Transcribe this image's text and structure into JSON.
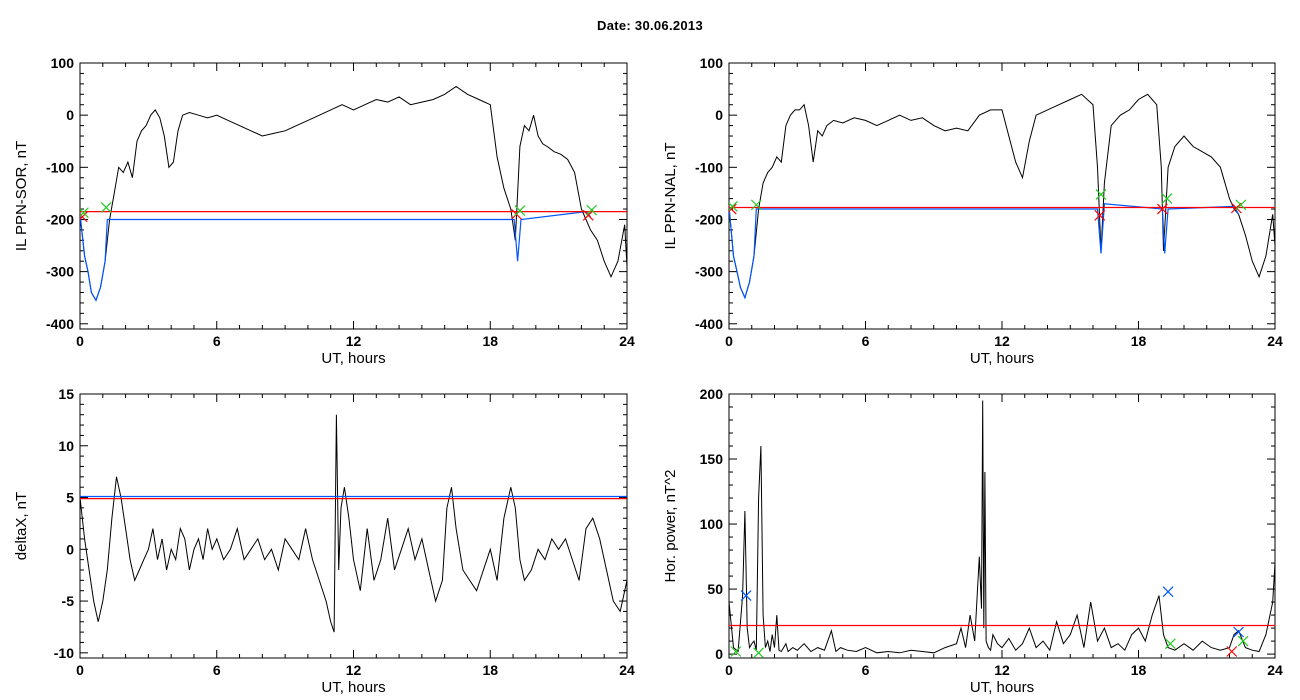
{
  "title": "Date:  30.06.2013",
  "colors": {
    "black": "#000000",
    "red": "#ff0000",
    "blue": "#0055ff",
    "green": "#22cc22"
  },
  "chart_data": [
    {
      "id": "il-ppn-sor",
      "type": "line",
      "xlabel": "UT, hours",
      "ylabel": "IL PPN-SOR, nT",
      "xlim": [
        0,
        24
      ],
      "ylim": [
        -410,
        100
      ],
      "xticks": [
        0,
        6,
        12,
        18,
        24
      ],
      "yticks": [
        100,
        0,
        -100,
        -200,
        -300,
        -400
      ],
      "series": [
        {
          "color": "black",
          "x": [
            0,
            0.2,
            0.35,
            0.5,
            0.7,
            0.9,
            1.1,
            1.3,
            1.5,
            1.7,
            1.9,
            2.1,
            2.3,
            2.5,
            2.7,
            2.9,
            3.1,
            3.3,
            3.5,
            3.7,
            3.9,
            4.1,
            4.3,
            4.5,
            4.8,
            5.2,
            5.6,
            6,
            6.5,
            7,
            7.5,
            8,
            8.5,
            9,
            9.5,
            10,
            10.5,
            11,
            11.5,
            12,
            12.5,
            13,
            13.5,
            14,
            14.5,
            15,
            15.5,
            16,
            16.5,
            17,
            17.5,
            18,
            18.3,
            18.6,
            18.9,
            19.1,
            19.3,
            19.5,
            19.7,
            19.9,
            20.1,
            20.3,
            20.5,
            20.8,
            21.1,
            21.4,
            21.7,
            22,
            22.2,
            22.4,
            22.7,
            23,
            23.3,
            23.6,
            23.9,
            24
          ],
          "y": [
            -190,
            -270,
            -300,
            -340,
            -355,
            -330,
            -280,
            -200,
            -150,
            -100,
            -110,
            -90,
            -120,
            -50,
            -30,
            -20,
            0,
            10,
            -5,
            -40,
            -100,
            -90,
            -30,
            0,
            5,
            0,
            -5,
            0,
            -10,
            -20,
            -30,
            -40,
            -35,
            -30,
            -20,
            -10,
            0,
            10,
            20,
            10,
            20,
            30,
            25,
            35,
            20,
            25,
            30,
            40,
            55,
            40,
            30,
            20,
            -80,
            -140,
            -180,
            -240,
            -60,
            -20,
            -30,
            0,
            -40,
            -55,
            -60,
            -70,
            -75,
            -85,
            -110,
            -180,
            -200,
            -220,
            -240,
            -280,
            -310,
            -280,
            -210,
            -290
          ]
        },
        {
          "color": "blue",
          "x": [
            0,
            0.2,
            0.35,
            0.5,
            0.7,
            0.9,
            1.1,
            1.2,
            19.05,
            19.2,
            19.35,
            22.2,
            22.4
          ],
          "y": [
            -190,
            -270,
            -300,
            -340,
            -355,
            -330,
            -280,
            -200,
            -200,
            -280,
            -200,
            -185,
            -195
          ]
        },
        {
          "color": "red",
          "x": [
            0,
            24
          ],
          "y": [
            -185,
            -185
          ]
        }
      ],
      "markers": [
        {
          "color": "green",
          "x": 1.15,
          "y": -177
        },
        {
          "color": "red",
          "x": 0.1,
          "y": -195
        },
        {
          "color": "green",
          "x": 0.15,
          "y": -187
        },
        {
          "color": "red",
          "x": 19.15,
          "y": -190
        },
        {
          "color": "green",
          "x": 19.3,
          "y": -183
        },
        {
          "color": "red",
          "x": 22.3,
          "y": -192
        },
        {
          "color": "green",
          "x": 22.45,
          "y": -182
        }
      ]
    },
    {
      "id": "il-ppn-nal",
      "type": "line",
      "xlabel": "UT, hours",
      "ylabel": "IL PPN-NAL, nT",
      "xlim": [
        0,
        24
      ],
      "ylim": [
        -410,
        100
      ],
      "xticks": [
        0,
        6,
        12,
        18,
        24
      ],
      "yticks": [
        100,
        0,
        -100,
        -200,
        -300,
        -400
      ],
      "series": [
        {
          "color": "black",
          "x": [
            0,
            0.2,
            0.35,
            0.5,
            0.7,
            0.9,
            1.1,
            1.3,
            1.5,
            1.7,
            1.9,
            2.1,
            2.3,
            2.5,
            2.7,
            2.9,
            3.1,
            3.3,
            3.5,
            3.7,
            3.9,
            4.1,
            4.3,
            4.6,
            5,
            5.5,
            6,
            6.5,
            7,
            7.5,
            8,
            8.5,
            9,
            9.5,
            10,
            10.5,
            11,
            11.5,
            12,
            12.3,
            12.6,
            12.9,
            13.2,
            13.5,
            14,
            14.5,
            15,
            15.5,
            16,
            16.2,
            16.35,
            16.5,
            16.8,
            17.2,
            17.6,
            18,
            18.4,
            18.8,
            19,
            19.1,
            19.3,
            19.6,
            20,
            20.4,
            20.8,
            21.2,
            21.6,
            22,
            22.2,
            22.4,
            22.7,
            23,
            23.3,
            23.6,
            23.9,
            24
          ],
          "y": [
            -175,
            -270,
            -300,
            -330,
            -350,
            -320,
            -270,
            -180,
            -130,
            -110,
            -100,
            -80,
            -90,
            -20,
            0,
            10,
            10,
            20,
            -20,
            -90,
            -30,
            -40,
            -20,
            -10,
            -15,
            -5,
            -10,
            -20,
            -10,
            0,
            -10,
            -5,
            -20,
            -30,
            -25,
            -30,
            0,
            10,
            10,
            -40,
            -90,
            -120,
            -50,
            0,
            10,
            20,
            30,
            40,
            20,
            -100,
            -260,
            -130,
            -20,
            0,
            10,
            30,
            40,
            20,
            -100,
            -260,
            -100,
            -60,
            -40,
            -60,
            -70,
            -80,
            -100,
            -160,
            -180,
            -190,
            -230,
            -280,
            -310,
            -270,
            -190,
            -250
          ]
        },
        {
          "color": "blue",
          "x": [
            0,
            0.2,
            0.35,
            0.5,
            0.7,
            0.9,
            1.1,
            1.2,
            16.2,
            16.35,
            16.5,
            19.05,
            19.15,
            19.3,
            22.2,
            22.4
          ],
          "y": [
            -175,
            -270,
            -300,
            -330,
            -350,
            -320,
            -270,
            -180,
            -180,
            -265,
            -170,
            -180,
            -265,
            -180,
            -175,
            -190
          ]
        },
        {
          "color": "red",
          "x": [
            0,
            24
          ],
          "y": [
            -177,
            -177
          ]
        }
      ],
      "markers": [
        {
          "color": "green",
          "x": 1.2,
          "y": -172
        },
        {
          "color": "red",
          "x": 0.1,
          "y": -180
        },
        {
          "color": "green",
          "x": 0.15,
          "y": -175
        },
        {
          "color": "red",
          "x": 16.3,
          "y": -192
        },
        {
          "color": "green",
          "x": 16.35,
          "y": -152
        },
        {
          "color": "red",
          "x": 19.05,
          "y": -180
        },
        {
          "color": "green",
          "x": 19.25,
          "y": -160
        },
        {
          "color": "red",
          "x": 22.3,
          "y": -178
        },
        {
          "color": "green",
          "x": 22.5,
          "y": -172
        }
      ]
    },
    {
      "id": "deltax",
      "type": "line",
      "xlabel": "UT, hours",
      "ylabel": "deltaX, nT",
      "xlim": [
        0,
        24
      ],
      "ylim": [
        -10.5,
        15
      ],
      "xticks": [
        0,
        6,
        12,
        18,
        24
      ],
      "yticks": [
        15,
        10,
        5,
        0,
        -5,
        -10
      ],
      "series": [
        {
          "color": "black",
          "x": [
            0,
            0.2,
            0.4,
            0.6,
            0.8,
            1,
            1.2,
            1.4,
            1.6,
            1.8,
            2,
            2.2,
            2.4,
            2.6,
            2.8,
            3,
            3.2,
            3.4,
            3.6,
            3.8,
            4,
            4.2,
            4.4,
            4.6,
            4.8,
            5,
            5.2,
            5.4,
            5.6,
            5.8,
            6,
            6.3,
            6.6,
            6.9,
            7.2,
            7.5,
            7.8,
            8.1,
            8.4,
            8.7,
            9,
            9.3,
            9.6,
            9.9,
            10.2,
            10.5,
            10.8,
            11,
            11.15,
            11.25,
            11.35,
            11.45,
            11.6,
            11.8,
            12,
            12.3,
            12.6,
            12.9,
            13.2,
            13.5,
            13.8,
            14.1,
            14.4,
            14.7,
            15,
            15.3,
            15.6,
            15.9,
            16.1,
            16.3,
            16.5,
            16.8,
            17.1,
            17.4,
            17.7,
            18,
            18.3,
            18.6,
            18.9,
            19.1,
            19.3,
            19.5,
            19.8,
            20.1,
            20.4,
            20.7,
            21,
            21.3,
            21.6,
            21.9,
            22.2,
            22.5,
            22.8,
            23.1,
            23.4,
            23.7,
            24
          ],
          "y": [
            5,
            1,
            -2,
            -5,
            -7,
            -5,
            -2,
            3,
            7,
            5,
            2,
            -1,
            -3,
            -2,
            -1,
            0,
            2,
            -1,
            1,
            -2,
            0,
            -1,
            2,
            1,
            -2,
            0,
            1,
            -1,
            2,
            0,
            1,
            -1,
            0,
            2,
            -1,
            0,
            1,
            -1,
            0,
            -2,
            1,
            0,
            -1,
            2,
            -1,
            -3,
            -5,
            -7,
            -8,
            13,
            -2,
            4,
            6,
            3,
            -1,
            -4,
            2,
            -3,
            -1,
            3,
            -2,
            0,
            2,
            -1,
            1,
            -2,
            -5,
            -3,
            4,
            6,
            2,
            -2,
            -3,
            -4,
            -2,
            0,
            -3,
            3,
            6,
            4,
            -1,
            -3,
            -2,
            0,
            -1,
            1,
            0,
            1,
            -1,
            -3,
            2,
            3,
            1,
            -2,
            -5,
            -6,
            -3
          ]
        },
        {
          "color": "red",
          "x": [
            0,
            24
          ],
          "y": [
            4.9,
            4.9
          ]
        },
        {
          "color": "blue",
          "x": [
            0,
            24
          ],
          "y": [
            5.1,
            5.1
          ]
        }
      ],
      "markers": []
    },
    {
      "id": "hor-power",
      "type": "line",
      "xlabel": "UT, hours",
      "ylabel": "Hor. power, nT^2",
      "xlim": [
        0,
        24
      ],
      "ylim": [
        -3,
        200
      ],
      "xticks": [
        0,
        6,
        12,
        18,
        24
      ],
      "yticks": [
        200,
        150,
        100,
        50,
        0
      ],
      "series": [
        {
          "color": "black",
          "x": [
            0,
            0.2,
            0.4,
            0.6,
            0.7,
            0.8,
            0.9,
            1,
            1.1,
            1.2,
            1.3,
            1.4,
            1.5,
            1.6,
            1.7,
            1.8,
            1.9,
            2,
            2.1,
            2.2,
            2.3,
            2.4,
            2.5,
            2.6,
            2.8,
            3,
            3.3,
            3.6,
            3.9,
            4.2,
            4.5,
            4.7,
            4.9,
            5.2,
            5.6,
            6,
            6.5,
            7,
            7.5,
            8,
            8.5,
            9,
            9.5,
            10,
            10.2,
            10.4,
            10.6,
            10.8,
            11,
            11.1,
            11.15,
            11.2,
            11.25,
            11.3,
            11.4,
            11.5,
            11.6,
            11.8,
            12,
            12.3,
            12.6,
            12.9,
            13.2,
            13.5,
            13.8,
            14.1,
            14.4,
            14.7,
            15,
            15.3,
            15.6,
            15.9,
            16.2,
            16.5,
            16.8,
            17.1,
            17.4,
            17.7,
            18,
            18.3,
            18.6,
            18.9,
            19.1,
            19.3,
            19.6,
            20,
            20.4,
            20.8,
            21.2,
            21.6,
            22,
            22.2,
            22.4,
            22.7,
            23,
            23.3,
            23.6,
            23.9,
            24
          ],
          "y": [
            40,
            5,
            2,
            45,
            110,
            20,
            5,
            8,
            10,
            3,
            120,
            160,
            30,
            5,
            10,
            2,
            15,
            5,
            30,
            3,
            2,
            5,
            8,
            2,
            5,
            3,
            8,
            2,
            5,
            3,
            18,
            2,
            5,
            3,
            2,
            5,
            1,
            2,
            1,
            3,
            2,
            1,
            5,
            8,
            20,
            5,
            30,
            10,
            75,
            35,
            195,
            20,
            140,
            10,
            5,
            3,
            15,
            8,
            5,
            12,
            3,
            8,
            20,
            5,
            10,
            3,
            25,
            8,
            15,
            30,
            5,
            40,
            10,
            20,
            5,
            8,
            3,
            15,
            20,
            10,
            30,
            45,
            15,
            5,
            3,
            8,
            3,
            10,
            5,
            3,
            5,
            15,
            18,
            5,
            3,
            2,
            15,
            40,
            70
          ]
        },
        {
          "color": "red",
          "x": [
            0,
            24
          ],
          "y": [
            22,
            22
          ]
        }
      ],
      "markers": [
        {
          "color": "blue",
          "x": 0.75,
          "y": 45
        },
        {
          "color": "green",
          "x": 0.3,
          "y": 2
        },
        {
          "color": "green",
          "x": 1.3,
          "y": 1
        },
        {
          "color": "blue",
          "x": 19.3,
          "y": 48
        },
        {
          "color": "green",
          "x": 19.4,
          "y": 8
        },
        {
          "color": "red",
          "x": 22.1,
          "y": 2
        },
        {
          "color": "blue",
          "x": 22.4,
          "y": 17
        },
        {
          "color": "green",
          "x": 22.6,
          "y": 10
        }
      ]
    }
  ]
}
